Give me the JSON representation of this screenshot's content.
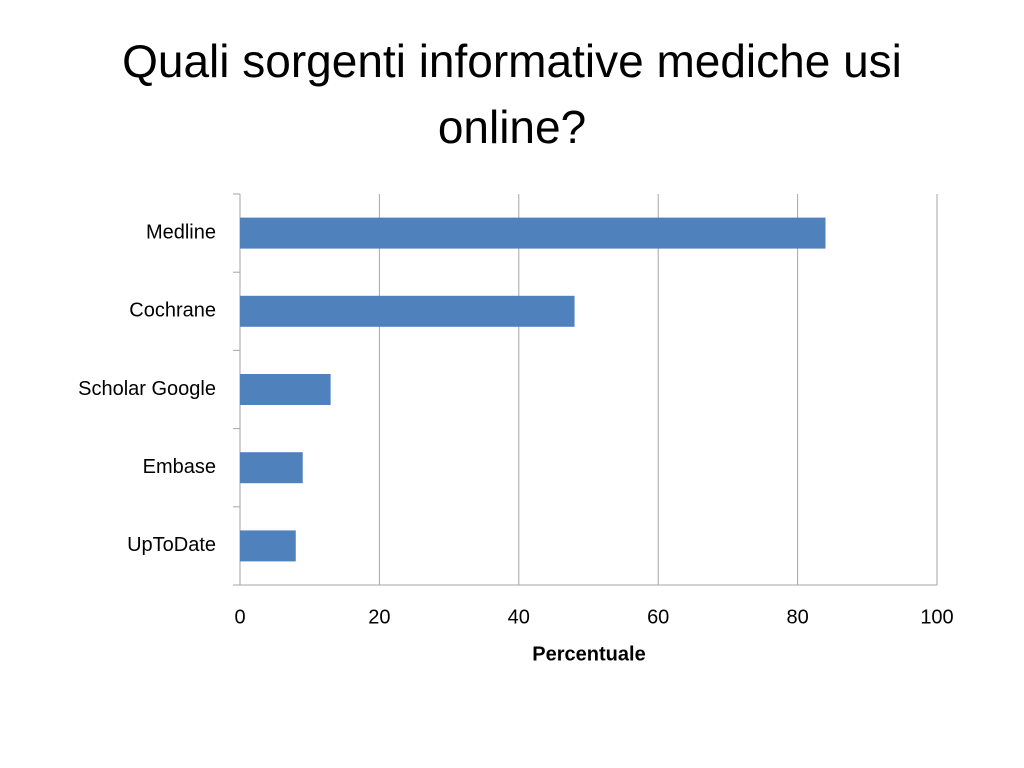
{
  "chart_data": {
    "type": "bar",
    "orientation": "horizontal",
    "title": "Quali sorgenti informative mediche usi online?",
    "x_label": "Percentuale",
    "categories": [
      "Medline",
      "Cochrane",
      "Scholar Google",
      "Embase",
      "UpToDate"
    ],
    "values": [
      84,
      48,
      13,
      9,
      8
    ],
    "color": "#4f81bd",
    "xlim": [
      0,
      100
    ],
    "xticks": [
      0,
      20,
      40,
      60,
      80,
      100
    ],
    "grid": true
  }
}
